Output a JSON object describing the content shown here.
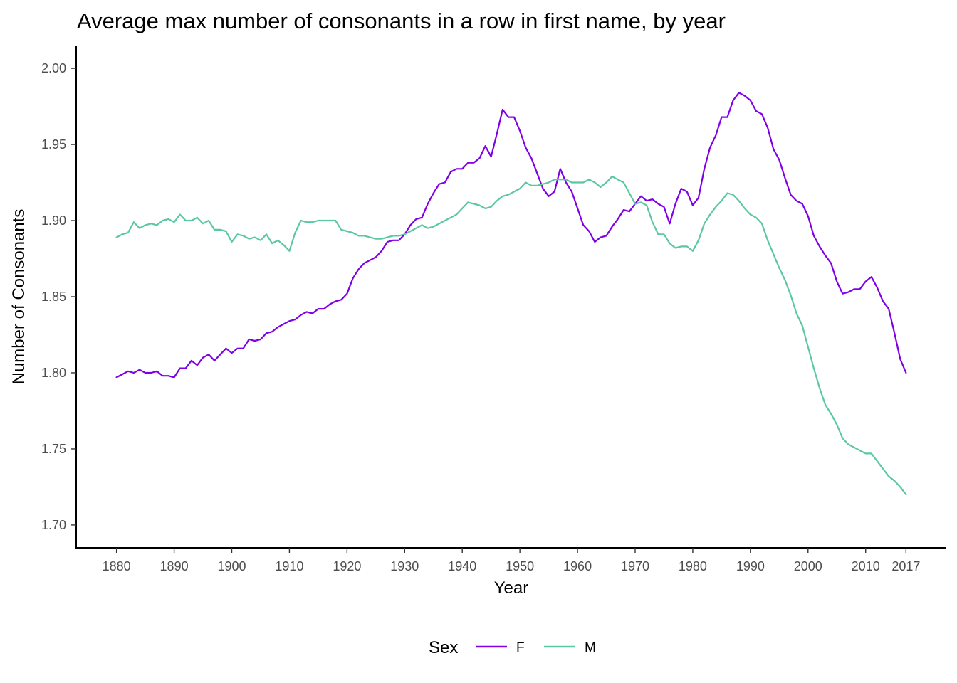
{
  "chart_data": {
    "type": "line",
    "title": "Average max number of consonants in a row in first name, by year",
    "xlabel": "Year",
    "ylabel": "Number of Consonants",
    "xlim": [
      1873,
      2024
    ],
    "ylim": [
      1.685,
      2.015
    ],
    "x_ticks": [
      1880,
      1890,
      1900,
      1910,
      1920,
      1930,
      1940,
      1950,
      1960,
      1970,
      1980,
      1990,
      2000,
      2010,
      2017
    ],
    "y_ticks": [
      1.7,
      1.75,
      1.8,
      1.85,
      1.9,
      1.95,
      2.0
    ],
    "y_tick_labels": [
      "1.70",
      "1.75",
      "1.80",
      "1.85",
      "1.90",
      "1.95",
      "2.00"
    ],
    "grid": false,
    "legend": {
      "title": "Sex",
      "position": "bottom"
    },
    "series": [
      {
        "name": "F",
        "color": "#8000e6",
        "points": [
          [
            1880,
            1.797
          ],
          [
            1881,
            1.799
          ],
          [
            1882,
            1.801
          ],
          [
            1883,
            1.8
          ],
          [
            1884,
            1.802
          ],
          [
            1885,
            1.8
          ],
          [
            1886,
            1.8
          ],
          [
            1887,
            1.801
          ],
          [
            1888,
            1.798
          ],
          [
            1889,
            1.798
          ],
          [
            1890,
            1.797
          ],
          [
            1891,
            1.803
          ],
          [
            1892,
            1.803
          ],
          [
            1893,
            1.808
          ],
          [
            1894,
            1.805
          ],
          [
            1895,
            1.81
          ],
          [
            1896,
            1.812
          ],
          [
            1897,
            1.808
          ],
          [
            1898,
            1.812
          ],
          [
            1899,
            1.816
          ],
          [
            1900,
            1.813
          ],
          [
            1901,
            1.816
          ],
          [
            1902,
            1.816
          ],
          [
            1903,
            1.822
          ],
          [
            1904,
            1.821
          ],
          [
            1905,
            1.822
          ],
          [
            1906,
            1.826
          ],
          [
            1907,
            1.827
          ],
          [
            1908,
            1.83
          ],
          [
            1909,
            1.832
          ],
          [
            1910,
            1.834
          ],
          [
            1911,
            1.835
          ],
          [
            1912,
            1.838
          ],
          [
            1913,
            1.84
          ],
          [
            1914,
            1.839
          ],
          [
            1915,
            1.842
          ],
          [
            1916,
            1.842
          ],
          [
            1917,
            1.845
          ],
          [
            1918,
            1.847
          ],
          [
            1919,
            1.848
          ],
          [
            1920,
            1.852
          ],
          [
            1921,
            1.862
          ],
          [
            1922,
            1.868
          ],
          [
            1923,
            1.872
          ],
          [
            1924,
            1.874
          ],
          [
            1925,
            1.876
          ],
          [
            1926,
            1.88
          ],
          [
            1927,
            1.886
          ],
          [
            1928,
            1.887
          ],
          [
            1929,
            1.887
          ],
          [
            1930,
            1.891
          ],
          [
            1931,
            1.897
          ],
          [
            1932,
            1.901
          ],
          [
            1933,
            1.902
          ],
          [
            1934,
            1.911
          ],
          [
            1935,
            1.918
          ],
          [
            1936,
            1.924
          ],
          [
            1937,
            1.925
          ],
          [
            1938,
            1.932
          ],
          [
            1939,
            1.934
          ],
          [
            1940,
            1.934
          ],
          [
            1941,
            1.938
          ],
          [
            1942,
            1.938
          ],
          [
            1943,
            1.941
          ],
          [
            1944,
            1.949
          ],
          [
            1945,
            1.942
          ],
          [
            1946,
            1.957
          ],
          [
            1947,
            1.973
          ],
          [
            1948,
            1.968
          ],
          [
            1949,
            1.968
          ],
          [
            1950,
            1.959
          ],
          [
            1951,
            1.948
          ],
          [
            1952,
            1.941
          ],
          [
            1953,
            1.931
          ],
          [
            1954,
            1.921
          ],
          [
            1955,
            1.916
          ],
          [
            1956,
            1.919
          ],
          [
            1957,
            1.934
          ],
          [
            1958,
            1.925
          ],
          [
            1959,
            1.919
          ],
          [
            1960,
            1.908
          ],
          [
            1961,
            1.897
          ],
          [
            1962,
            1.893
          ],
          [
            1963,
            1.886
          ],
          [
            1964,
            1.889
          ],
          [
            1965,
            1.89
          ],
          [
            1966,
            1.896
          ],
          [
            1967,
            1.901
          ],
          [
            1968,
            1.907
          ],
          [
            1969,
            1.906
          ],
          [
            1970,
            1.911
          ],
          [
            1971,
            1.916
          ],
          [
            1972,
            1.913
          ],
          [
            1973,
            1.914
          ],
          [
            1974,
            1.911
          ],
          [
            1975,
            1.909
          ],
          [
            1976,
            1.898
          ],
          [
            1977,
            1.911
          ],
          [
            1978,
            1.921
          ],
          [
            1979,
            1.919
          ],
          [
            1980,
            1.91
          ],
          [
            1981,
            1.915
          ],
          [
            1982,
            1.934
          ],
          [
            1983,
            1.948
          ],
          [
            1984,
            1.956
          ],
          [
            1985,
            1.968
          ],
          [
            1986,
            1.968
          ],
          [
            1987,
            1.979
          ],
          [
            1988,
            1.984
          ],
          [
            1989,
            1.982
          ],
          [
            1990,
            1.979
          ],
          [
            1991,
            1.972
          ],
          [
            1992,
            1.97
          ],
          [
            1993,
            1.961
          ],
          [
            1994,
            1.947
          ],
          [
            1995,
            1.94
          ],
          [
            1996,
            1.928
          ],
          [
            1997,
            1.917
          ],
          [
            1998,
            1.913
          ],
          [
            1999,
            1.911
          ],
          [
            2000,
            1.903
          ],
          [
            2001,
            1.89
          ],
          [
            2002,
            1.883
          ],
          [
            2003,
            1.877
          ],
          [
            2004,
            1.872
          ],
          [
            2005,
            1.86
          ],
          [
            2006,
            1.852
          ],
          [
            2007,
            1.853
          ],
          [
            2008,
            1.855
          ],
          [
            2009,
            1.855
          ],
          [
            2010,
            1.86
          ],
          [
            2011,
            1.863
          ],
          [
            2012,
            1.856
          ],
          [
            2013,
            1.847
          ],
          [
            2014,
            1.842
          ],
          [
            2015,
            1.826
          ],
          [
            2016,
            1.809
          ],
          [
            2017,
            1.8
          ]
        ]
      },
      {
        "name": "M",
        "color": "#5bc8a0",
        "points": [
          [
            1880,
            1.889
          ],
          [
            1881,
            1.891
          ],
          [
            1882,
            1.892
          ],
          [
            1883,
            1.899
          ],
          [
            1884,
            1.895
          ],
          [
            1885,
            1.897
          ],
          [
            1886,
            1.898
          ],
          [
            1887,
            1.897
          ],
          [
            1888,
            1.9
          ],
          [
            1889,
            1.901
          ],
          [
            1890,
            1.899
          ],
          [
            1891,
            1.904
          ],
          [
            1892,
            1.9
          ],
          [
            1893,
            1.9
          ],
          [
            1894,
            1.902
          ],
          [
            1895,
            1.898
          ],
          [
            1896,
            1.9
          ],
          [
            1897,
            1.894
          ],
          [
            1898,
            1.894
          ],
          [
            1899,
            1.893
          ],
          [
            1900,
            1.886
          ],
          [
            1901,
            1.891
          ],
          [
            1902,
            1.89
          ],
          [
            1903,
            1.888
          ],
          [
            1904,
            1.889
          ],
          [
            1905,
            1.887
          ],
          [
            1906,
            1.891
          ],
          [
            1907,
            1.885
          ],
          [
            1908,
            1.887
          ],
          [
            1909,
            1.884
          ],
          [
            1910,
            1.88
          ],
          [
            1911,
            1.892
          ],
          [
            1912,
            1.9
          ],
          [
            1913,
            1.899
          ],
          [
            1914,
            1.899
          ],
          [
            1915,
            1.9
          ],
          [
            1916,
            1.9
          ],
          [
            1917,
            1.9
          ],
          [
            1918,
            1.9
          ],
          [
            1919,
            1.894
          ],
          [
            1920,
            1.893
          ],
          [
            1921,
            1.892
          ],
          [
            1922,
            1.89
          ],
          [
            1923,
            1.89
          ],
          [
            1924,
            1.889
          ],
          [
            1925,
            1.888
          ],
          [
            1926,
            1.888
          ],
          [
            1927,
            1.889
          ],
          [
            1928,
            1.89
          ],
          [
            1929,
            1.89
          ],
          [
            1930,
            1.891
          ],
          [
            1931,
            1.893
          ],
          [
            1932,
            1.895
          ],
          [
            1933,
            1.897
          ],
          [
            1934,
            1.895
          ],
          [
            1935,
            1.896
          ],
          [
            1936,
            1.898
          ],
          [
            1937,
            1.9
          ],
          [
            1938,
            1.902
          ],
          [
            1939,
            1.904
          ],
          [
            1940,
            1.908
          ],
          [
            1941,
            1.912
          ],
          [
            1942,
            1.911
          ],
          [
            1943,
            1.91
          ],
          [
            1944,
            1.908
          ],
          [
            1945,
            1.909
          ],
          [
            1946,
            1.913
          ],
          [
            1947,
            1.916
          ],
          [
            1948,
            1.917
          ],
          [
            1949,
            1.919
          ],
          [
            1950,
            1.921
          ],
          [
            1951,
            1.925
          ],
          [
            1952,
            1.923
          ],
          [
            1953,
            1.923
          ],
          [
            1954,
            1.924
          ],
          [
            1955,
            1.925
          ],
          [
            1956,
            1.927
          ],
          [
            1957,
            1.927
          ],
          [
            1958,
            1.927
          ],
          [
            1959,
            1.925
          ],
          [
            1960,
            1.925
          ],
          [
            1961,
            1.925
          ],
          [
            1962,
            1.927
          ],
          [
            1963,
            1.925
          ],
          [
            1964,
            1.922
          ],
          [
            1965,
            1.925
          ],
          [
            1966,
            1.929
          ],
          [
            1967,
            1.927
          ],
          [
            1968,
            1.925
          ],
          [
            1969,
            1.918
          ],
          [
            1970,
            1.911
          ],
          [
            1971,
            1.912
          ],
          [
            1972,
            1.91
          ],
          [
            1973,
            1.899
          ],
          [
            1974,
            1.891
          ],
          [
            1975,
            1.891
          ],
          [
            1976,
            1.885
          ],
          [
            1977,
            1.882
          ],
          [
            1978,
            1.883
          ],
          [
            1979,
            1.883
          ],
          [
            1980,
            1.88
          ],
          [
            1981,
            1.887
          ],
          [
            1982,
            1.898
          ],
          [
            1983,
            1.904
          ],
          [
            1984,
            1.909
          ],
          [
            1985,
            1.913
          ],
          [
            1986,
            1.918
          ],
          [
            1987,
            1.917
          ],
          [
            1988,
            1.913
          ],
          [
            1989,
            1.908
          ],
          [
            1990,
            1.904
          ],
          [
            1991,
            1.902
          ],
          [
            1992,
            1.898
          ],
          [
            1993,
            1.887
          ],
          [
            1994,
            1.878
          ],
          [
            1995,
            1.869
          ],
          [
            1996,
            1.861
          ],
          [
            1997,
            1.851
          ],
          [
            1998,
            1.839
          ],
          [
            1999,
            1.831
          ],
          [
            2000,
            1.817
          ],
          [
            2001,
            1.803
          ],
          [
            2002,
            1.79
          ],
          [
            2003,
            1.779
          ],
          [
            2004,
            1.773
          ],
          [
            2005,
            1.766
          ],
          [
            2006,
            1.757
          ],
          [
            2007,
            1.753
          ],
          [
            2008,
            1.751
          ],
          [
            2009,
            1.749
          ],
          [
            2010,
            1.747
          ],
          [
            2011,
            1.747
          ],
          [
            2012,
            1.742
          ],
          [
            2013,
            1.737
          ],
          [
            2014,
            1.732
          ],
          [
            2015,
            1.729
          ],
          [
            2016,
            1.725
          ],
          [
            2017,
            1.72
          ]
        ]
      }
    ]
  }
}
